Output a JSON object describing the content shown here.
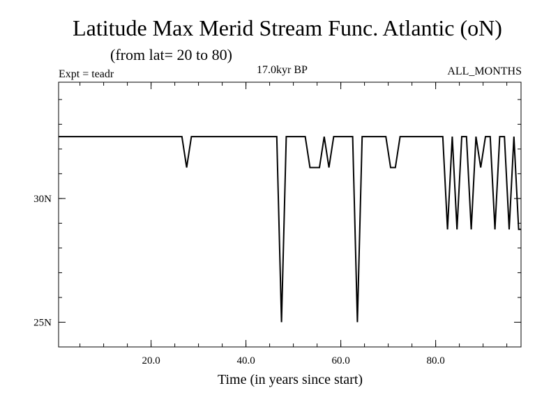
{
  "header": {
    "title": "Latitude Max Merid Stream Func. Atlantic (oN)",
    "subtitle": "(from lat= 20 to 80)",
    "experiment": "Expt = teadr",
    "period": "17.0kyr BP",
    "months": "ALL_MONTHS"
  },
  "chart_data": {
    "type": "line",
    "title": "Latitude Max Merid Stream Func. Atlantic (oN)",
    "xlabel": "Time (in years since start)",
    "ylabel": "",
    "xlim": [
      0.5,
      98.0
    ],
    "ylim": [
      24.0,
      34.7
    ],
    "x_ticks": [
      20.0,
      40.0,
      60.0,
      80.0
    ],
    "x_tick_labels": [
      "20.0",
      "40.0",
      "60.0",
      "80.0"
    ],
    "y_ticks": [
      25,
      30
    ],
    "y_tick_labels": [
      "25N",
      "30N"
    ],
    "grid": false,
    "series": [
      {
        "color": "#000000",
        "x": [
          0.5,
          26.5,
          27.5,
          28.5,
          46.5,
          47.5,
          48.5,
          52.5,
          53.5,
          55.5,
          56.5,
          57.5,
          58.5,
          62.5,
          63.5,
          64.5,
          69.5,
          70.5,
          71.5,
          72.5,
          81.5,
          82.5,
          83.5,
          84.5,
          85.5,
          86.5,
          87.5,
          88.5,
          89.5,
          90.5,
          91.5,
          92.5,
          93.5,
          94.5,
          95.5,
          96.5,
          97.5,
          98.0
        ],
        "y": [
          32.5,
          32.5,
          31.25,
          32.5,
          32.5,
          25.0,
          32.5,
          32.5,
          31.25,
          31.25,
          32.5,
          31.25,
          32.5,
          32.5,
          25.0,
          32.5,
          32.5,
          31.25,
          31.25,
          32.5,
          32.5,
          28.75,
          32.5,
          28.75,
          32.5,
          32.5,
          28.75,
          32.5,
          31.25,
          32.5,
          32.5,
          28.75,
          32.5,
          32.5,
          28.75,
          32.5,
          28.75,
          28.75
        ]
      }
    ]
  }
}
